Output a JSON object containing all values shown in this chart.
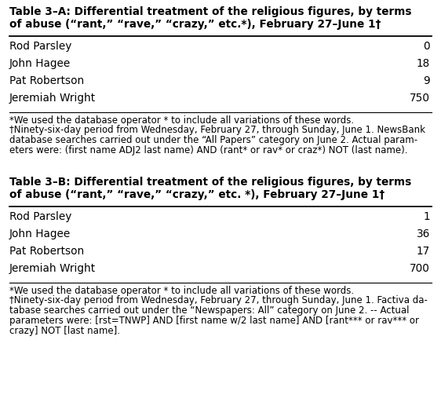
{
  "table_a_title_line1": "Table 3–A: Differential treatment of the religious figures, by terms",
  "table_a_title_line2": "of abuse (“rant,” “rave,” “crazy,” etc.*), February 27–June 1†",
  "table_b_title_line1": "Table 3–B: Differential treatment of the religious figures, by terms",
  "table_b_title_line2": "of abuse (“rant,” “rave,” “crazy,” etc. *), February 27–June 1†",
  "table_a_rows": [
    [
      "Rod Parsley",
      "0"
    ],
    [
      "John Hagee",
      "18"
    ],
    [
      "Pat Robertson",
      "9"
    ],
    [
      "Jeremiah Wright",
      "750"
    ]
  ],
  "table_b_rows": [
    [
      "Rod Parsley",
      "1"
    ],
    [
      "John Hagee",
      "36"
    ],
    [
      "Pat Robertson",
      "17"
    ],
    [
      "Jeremiah Wright",
      "700"
    ]
  ],
  "footnote_a_star": "*We used the database operator * to include all variations of these words.",
  "footnote_a_dagger_lines": [
    "†Ninety-six-day period from Wednesday, February 27, through Sunday, June 1. NewsBank",
    "database searches carried out under the “All Papers” category on June 2. Actual param-",
    "eters were: (first name ADJ2 last name) AND (rant* or rav* or craz*) NOT (last name)."
  ],
  "footnote_b_star": "*We used the database operator * to include all variations of these words.",
  "footnote_b_dagger_lines": [
    "†Ninety-six-day period from Wednesday, February 27, through Sunday, June 1. Factiva da-",
    "tabase searches carried out under the “Newspapers: All” category on June 2. -- Actual",
    "parameters were: [rst=TNWP] AND [first name w/2 last name] AND [rant*** or rav*** or",
    "crazy] NOT [last name]."
  ],
  "bg_color": "#ffffff",
  "text_color": "#000000",
  "title_fontsize": 9.8,
  "body_fontsize": 9.8,
  "footnote_fontsize": 8.5
}
